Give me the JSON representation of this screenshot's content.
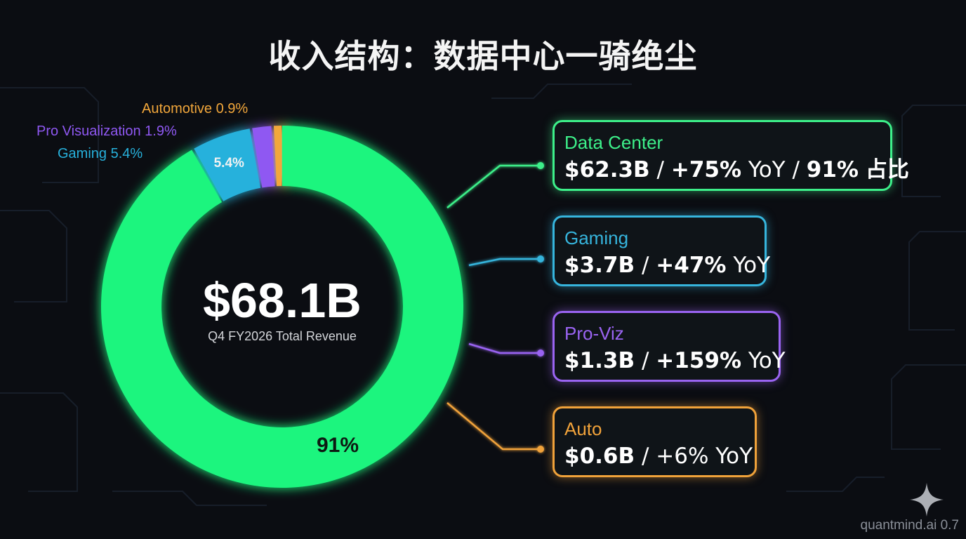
{
  "title": "收入结构：数据中心一骑绝尘",
  "center": {
    "value": "$68.1B",
    "caption": "Q4 FY2026 Total Revenue"
  },
  "chart_data": {
    "type": "pie",
    "style": "donut",
    "total_label": "$68.1B",
    "slices": [
      {
        "name": "Data Center",
        "percent": 91,
        "inner_label": "91%",
        "color": "#1cf57e"
      },
      {
        "name": "Gaming",
        "percent": 5.4,
        "outer_label": "Gaming 5.4%",
        "inner_label": "5.4%",
        "color": "#27b1dc"
      },
      {
        "name": "Pro Visualization",
        "percent": 1.9,
        "outer_label": "Pro Visualization 1.9%",
        "color": "#8f58f2"
      },
      {
        "name": "Automotive",
        "percent": 0.9,
        "outer_label": "Automotive 0.9%",
        "color": "#f2a73b"
      }
    ]
  },
  "cards": [
    {
      "name": "Data Center",
      "revenue": "$62.3B",
      "yoy_value": "+75%",
      "yoy_unit": "YoY",
      "share_value": "91%",
      "share_unit": "占比",
      "color": "#3df08a"
    },
    {
      "name": "Gaming",
      "revenue": "$3.7B",
      "yoy_value": "+47%",
      "yoy_unit": "YoY",
      "color": "#36b5dd"
    },
    {
      "name": "Pro-Viz",
      "revenue": "$1.3B",
      "yoy_value": "+159%",
      "yoy_unit": "YoY",
      "color": "#9a64f2"
    },
    {
      "name": "Auto",
      "revenue": "$0.6B",
      "yoy_value": "+6%",
      "yoy_unit": "YoY",
      "color": "#f0a23a"
    }
  ],
  "watermark": "quantmind.ai 0.7"
}
